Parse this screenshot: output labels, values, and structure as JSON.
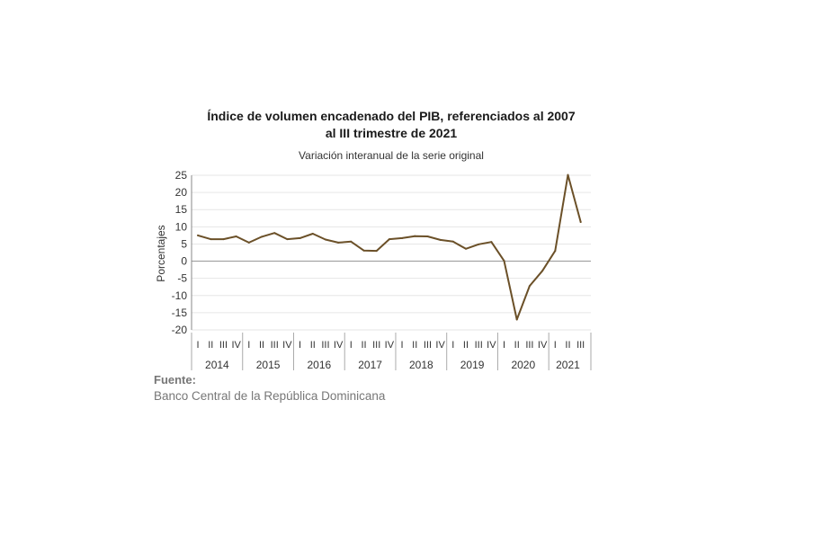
{
  "chart_data": {
    "type": "line",
    "title_line1": "Índice de volumen encadenado del PIB, referenciados al 2007",
    "title_line2": "al III trimestre de 2021",
    "subtitle": "Variación interanual de la serie original",
    "ylabel": "Porcentajes",
    "ylim": [
      -20,
      25
    ],
    "yticks": [
      25,
      20,
      15,
      10,
      5,
      0,
      -5,
      -10,
      -15,
      -20
    ],
    "grid": true,
    "colors": {
      "line": "#6b5028",
      "grid": "#e6e6e6",
      "axis": "#888888"
    },
    "years": [
      "2014",
      "2015",
      "2016",
      "2017",
      "2018",
      "2019",
      "2020",
      "2021"
    ],
    "quarters_per_year": [
      4,
      4,
      4,
      4,
      4,
      4,
      4,
      3
    ],
    "quarter_labels": [
      "I",
      "II",
      "III",
      "IV"
    ],
    "values": [
      7.5,
      6.4,
      6.4,
      7.2,
      5.4,
      7.1,
      8.2,
      6.4,
      6.7,
      8.0,
      6.3,
      5.4,
      5.7,
      3.1,
      3.0,
      6.4,
      6.7,
      7.3,
      7.2,
      6.2,
      5.7,
      3.6,
      4.9,
      5.6,
      0.1,
      -17.0,
      -7.2,
      -2.8,
      3.0,
      25.1,
      11.4
    ]
  },
  "source": {
    "label": "Fuente:",
    "text": "Banco Central de la República Dominicana"
  }
}
